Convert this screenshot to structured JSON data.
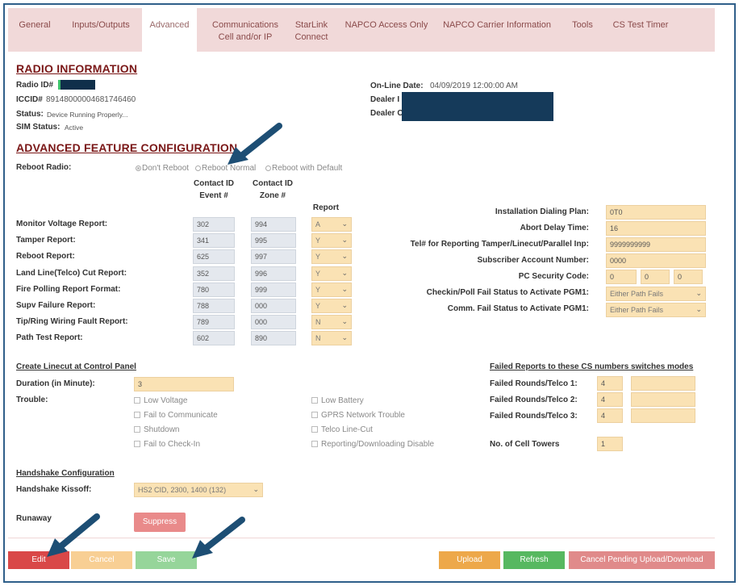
{
  "tabs": [
    {
      "label": "General"
    },
    {
      "label": "Inputs/Outputs"
    },
    {
      "label": "Advanced"
    },
    {
      "label": "Communications Cell and/or IP"
    },
    {
      "label": "StarLink Connect"
    },
    {
      "label": "NAPCO Access Only"
    },
    {
      "label": "NAPCO Carrier Information"
    },
    {
      "label": "Tools"
    },
    {
      "label": "CS Test Timer"
    }
  ],
  "radio_info": {
    "title": "RADIO INFORMATION",
    "radio_id_label": "Radio ID#",
    "iccid_label": "ICCID#",
    "iccid_value": "89148000004681746460",
    "status_label": "Status:",
    "status_value": "Device Running Properly...",
    "sim_label": "SIM Status:",
    "sim_value": "Active",
    "online_label": "On-Line Date:",
    "online_value": "04/09/2019 12:00:00 AM",
    "dealer1_label": "Dealer I",
    "dealer2_label": "Dealer C"
  },
  "adv": {
    "title": "ADVANCED FEATURE CONFIGURATION",
    "reboot_label": "Reboot Radio:",
    "reboot_options": [
      "Don't Reboot",
      "Reboot Normal",
      "Reboot with Default"
    ],
    "col_event": "Contact ID Event #",
    "col_zone": "Contact ID Zone #",
    "col_report": "Report",
    "rows": [
      {
        "label": "Monitor Voltage Report:",
        "event": "302",
        "zone": "994",
        "report": "A"
      },
      {
        "label": "Tamper Report:",
        "event": "341",
        "zone": "995",
        "report": "Y"
      },
      {
        "label": "Reboot Report:",
        "event": "625",
        "zone": "997",
        "report": "Y"
      },
      {
        "label": "Land Line(Telco) Cut Report:",
        "event": "352",
        "zone": "996",
        "report": "Y"
      },
      {
        "label": "Fire Polling Report Format:",
        "event": "780",
        "zone": "999",
        "report": "Y"
      },
      {
        "label": "Supv Failure Report:",
        "event": "788",
        "zone": "000",
        "report": "Y"
      },
      {
        "label": "Tip/Ring Wiring Fault Report:",
        "event": "789",
        "zone": "000",
        "report": "N"
      },
      {
        "label": "Path Test Report:",
        "event": "602",
        "zone": "890",
        "report": "N"
      }
    ],
    "right": {
      "dialing_plan_label": "Installation Dialing Plan:",
      "dialing_plan_value": "0T0",
      "abort_delay_label": "Abort Delay Time:",
      "abort_delay_value": "16",
      "tel_label": "Tel# for Reporting Tamper/Linecut/Parallel Inp:",
      "tel_value": "9999999999",
      "account_label": "Subscriber Account Number:",
      "account_value": "0000",
      "pc_label": "PC Security Code:",
      "pc_values": [
        "0",
        "0",
        "0"
      ],
      "checkin_label": "Checkin/Poll Fail Status to Activate PGM1:",
      "checkin_value": "Either Path Fails",
      "comm_label": "Comm. Fail Status to Activate PGM1:",
      "comm_value": "Either Path Fails"
    }
  },
  "linecut": {
    "title": "Create Linecut at Control Panel",
    "duration_label": "Duration (in Minute):",
    "duration_value": "3",
    "trouble_label": "Trouble:",
    "trouble_left": [
      "Low Voltage",
      "Fail to Communicate",
      "Shutdown",
      "Fail to Check-In"
    ],
    "trouble_right": [
      "Low Battery",
      "GPRS Network Trouble",
      "Telco Line-Cut",
      "Reporting/Downloading Disable"
    ]
  },
  "failed": {
    "title": "Failed Reports to these CS numbers switches modes",
    "rows": [
      {
        "label": "Failed Rounds/Telco 1:",
        "value": "4"
      },
      {
        "label": "Failed Rounds/Telco 2:",
        "value": "4"
      },
      {
        "label": "Failed Rounds/Telco 3:",
        "value": "4"
      }
    ],
    "towers_label": "No. of Cell Towers",
    "towers_value": "1"
  },
  "handshake": {
    "title": "Handshake Configuration",
    "kissoff_label": "Handshake Kissoff:",
    "kissoff_value": "HS2 CID, 2300, 1400 (132)",
    "runaway_label": "Runaway",
    "suppress_label": "Suppress"
  },
  "footer": {
    "edit": "Edit",
    "cancel": "Cancel",
    "save": "Save",
    "upload": "Upload",
    "refresh": "Refresh",
    "cancel_pending": "Cancel Pending Upload/Download"
  },
  "colors": {
    "accent_title": "#7a1717",
    "tab_bg": "#f1d9d9",
    "input_bg": "#fae2b4",
    "edit": "#d94848",
    "cancel": "#f8cf94",
    "save": "#96d59a",
    "upload": "#eda84a",
    "refresh": "#57b860",
    "cancel_pending": "#e08a8a",
    "arrow": "#1d4e74"
  }
}
